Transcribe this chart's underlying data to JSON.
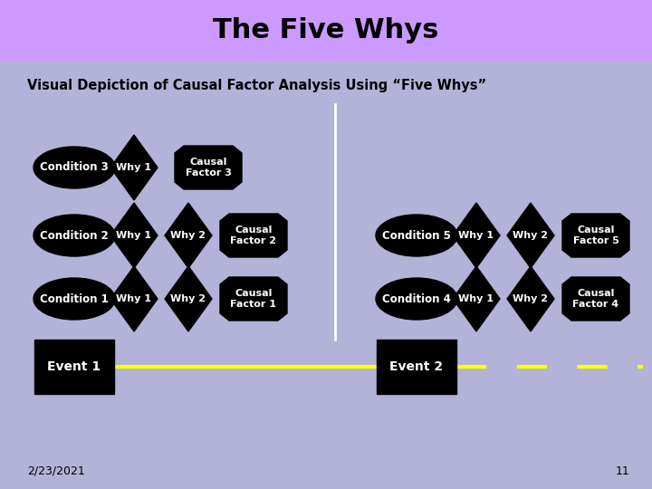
{
  "title": "The Five Whys",
  "subtitle": "Visual Depiction of Causal Factor Analysis Using “Five Whys”",
  "title_bg": "#cc99ff",
  "body_bg": "#b3b3d9",
  "date_text": "2/23/2021",
  "page_num": "11"
}
